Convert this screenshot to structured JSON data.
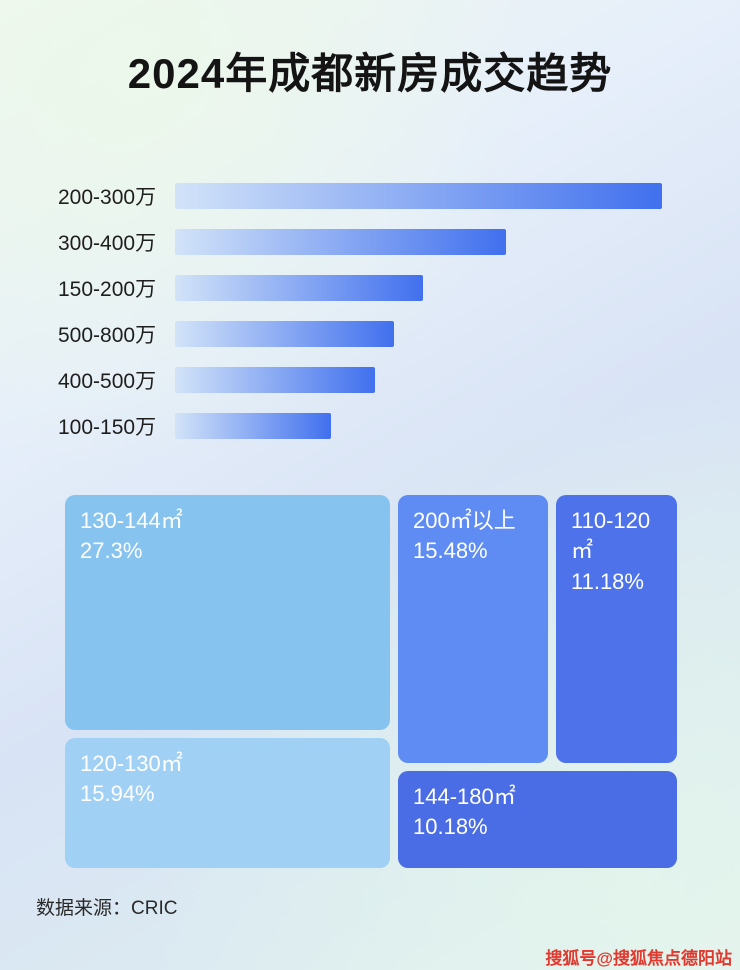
{
  "meta": {
    "title": "2024年成都新房成交趋势"
  },
  "footer": {
    "source_label": "数据来源：CRIC"
  },
  "watermark": {
    "text": "搜狐号@搜狐焦点德阳站",
    "color": "#e0392e"
  },
  "colors": {
    "bar_gradient_start": "#d2e3f8",
    "bar_gradient_end": "#4170ee",
    "title_color": "#141414",
    "label_color": "#1e1e1e"
  },
  "chart_data": [
    {
      "type": "bar",
      "orientation": "horizontal",
      "title": "2024年成都新房成交趋势",
      "categories": [
        "200-300万",
        "300-400万",
        "150-200万",
        "500-800万",
        "400-500万",
        "100-150万"
      ],
      "values": [
        100,
        68,
        51,
        45,
        41,
        32
      ],
      "value_unit": "relative bar length, % of longest bar (no numeric labels shown in image)",
      "xlabel": "",
      "ylabel": "",
      "grid": false,
      "data_labels": false,
      "legend": false
    },
    {
      "type": "treemap",
      "title": "",
      "items": [
        {
          "label": "130-144㎡",
          "value": "27.3%",
          "color": "#86c3ee"
        },
        {
          "label": "200㎡以上",
          "value": "15.48%",
          "color": "#5e8cf2"
        },
        {
          "label": "110-120㎡",
          "value": "11.18%",
          "color": "#4d72e9"
        },
        {
          "label": "120-130㎡",
          "value": "15.94%",
          "color": "#a0d0f3"
        },
        {
          "label": "144-180㎡",
          "value": "10.18%",
          "color": "#4a6ce4"
        }
      ]
    }
  ]
}
